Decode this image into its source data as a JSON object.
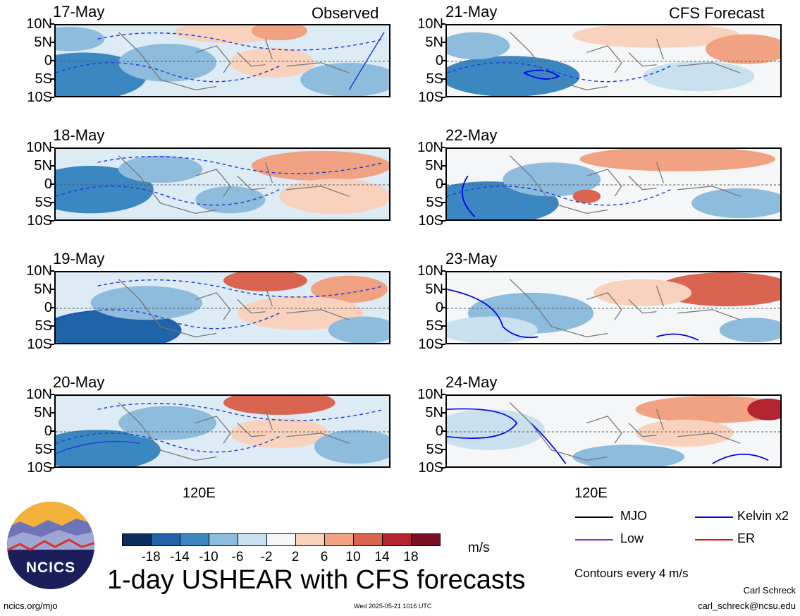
{
  "headers": {
    "left": "Observed",
    "right": "CFS Forecast"
  },
  "lat_labels": [
    "10N",
    "5N",
    "0",
    "5S",
    "10S"
  ],
  "lon_label": "120E",
  "panels_left": [
    {
      "date": "17-May"
    },
    {
      "date": "18-May"
    },
    {
      "date": "19-May"
    },
    {
      "date": "20-May"
    }
  ],
  "panels_right": [
    {
      "date": "21-May"
    },
    {
      "date": "22-May"
    },
    {
      "date": "23-May"
    },
    {
      "date": "24-May"
    }
  ],
  "colorbar": {
    "labels": [
      "-18",
      "-14",
      "-10",
      "-6",
      "-2",
      "2",
      "6",
      "10",
      "14",
      "18"
    ],
    "colors": [
      "#0b2f5c",
      "#1f64a8",
      "#3b87c2",
      "#8dbcdd",
      "#c9e0ef",
      "#f5f6f7",
      "#f9d2bd",
      "#f0a283",
      "#d96450",
      "#b22530",
      "#7a0e22"
    ],
    "unit": "m/s"
  },
  "legend": {
    "items": [
      {
        "label": "MJO",
        "color": "#000000"
      },
      {
        "label": "Kelvin x2",
        "color": "#0000ee"
      },
      {
        "label": "Low",
        "color": "#8a2be2"
      },
      {
        "label": "ER",
        "color": "#e01010"
      }
    ],
    "contours_note": "Contours every 4 m/s"
  },
  "title": "1-day USHEAR with CFS forecasts",
  "logo": {
    "text": "NCICS"
  },
  "footer": {
    "url": "ncics.org/mjo",
    "timestamp": "Wed 2025-05-21 1016 UTC",
    "author": "Carl Schreck",
    "email": "carl_schreck@ncsu.edu"
  }
}
